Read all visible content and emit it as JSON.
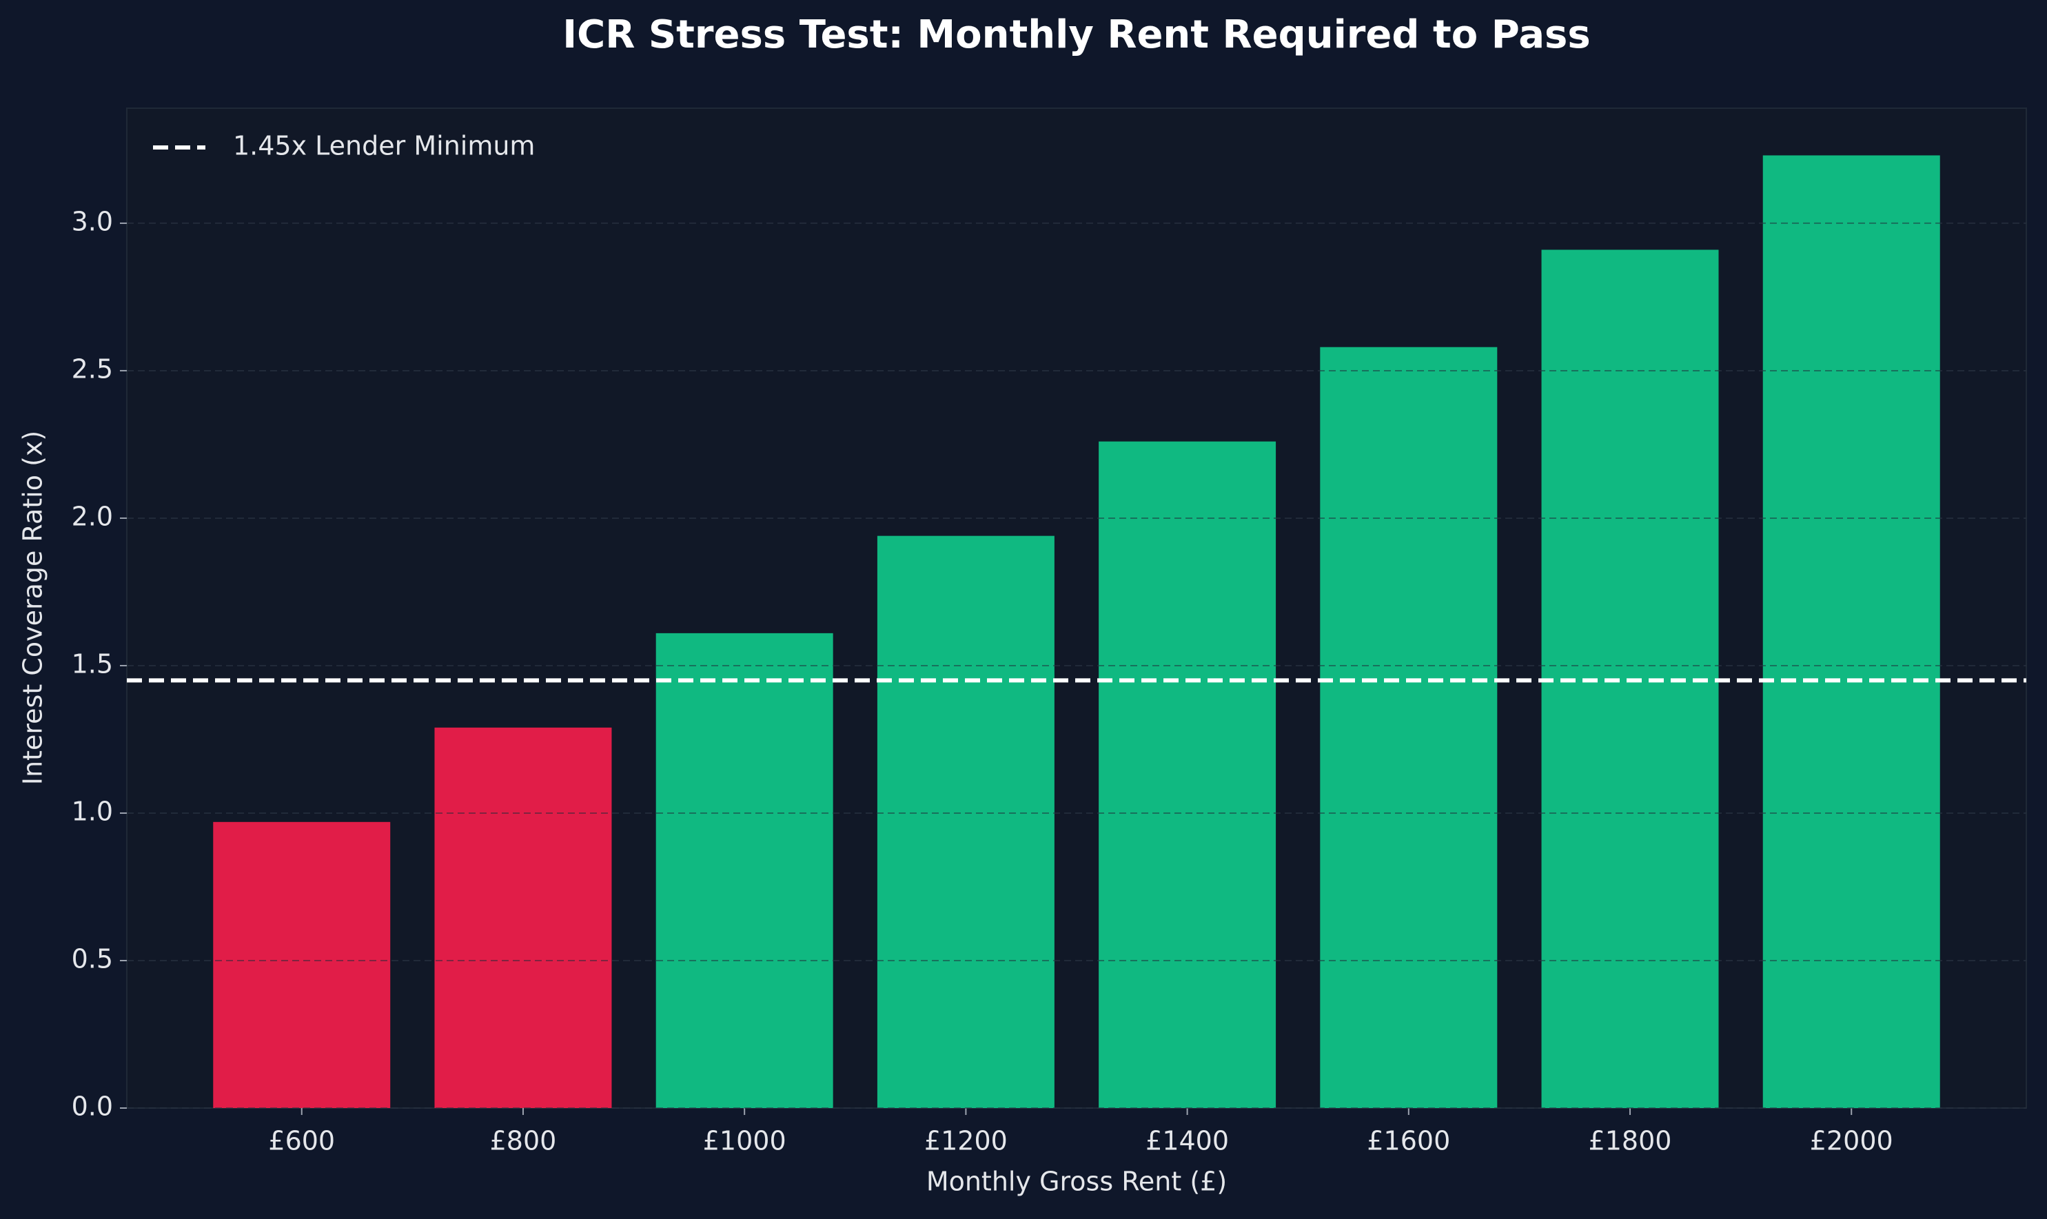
{
  "chart_data": {
    "type": "bar",
    "title": "ICR Stress Test: Monthly Rent Required to Pass",
    "x_label": "Monthly Gross Rent (£)",
    "y_label": "Interest Coverage Ratio (x)",
    "categories": [
      "£600",
      "£800",
      "£1000",
      "£1200",
      "£1400",
      "£1600",
      "£1800",
      "£2000"
    ],
    "values": [
      0.97,
      1.29,
      1.61,
      1.94,
      2.26,
      2.58,
      2.91,
      3.23
    ],
    "colors": [
      "#e11d48",
      "#e11d48",
      "#10b981",
      "#10b981",
      "#10b981",
      "#10b981",
      "#10b981",
      "#10b981"
    ],
    "ylim": [
      0,
      3.39
    ],
    "yticks": [
      {
        "value": 0,
        "label": "0.0"
      },
      0.5,
      {
        "value": 1,
        "label": "1.0"
      },
      1.5,
      {
        "value": 2,
        "label": "2.0"
      },
      2.5,
      {
        "value": 3,
        "label": "3.0"
      }
    ],
    "grid": true,
    "reference_line": {
      "value": 1.45,
      "name": "1.45x Lender Minimum",
      "color": "#ffffff"
    },
    "legend": "upper left"
  }
}
